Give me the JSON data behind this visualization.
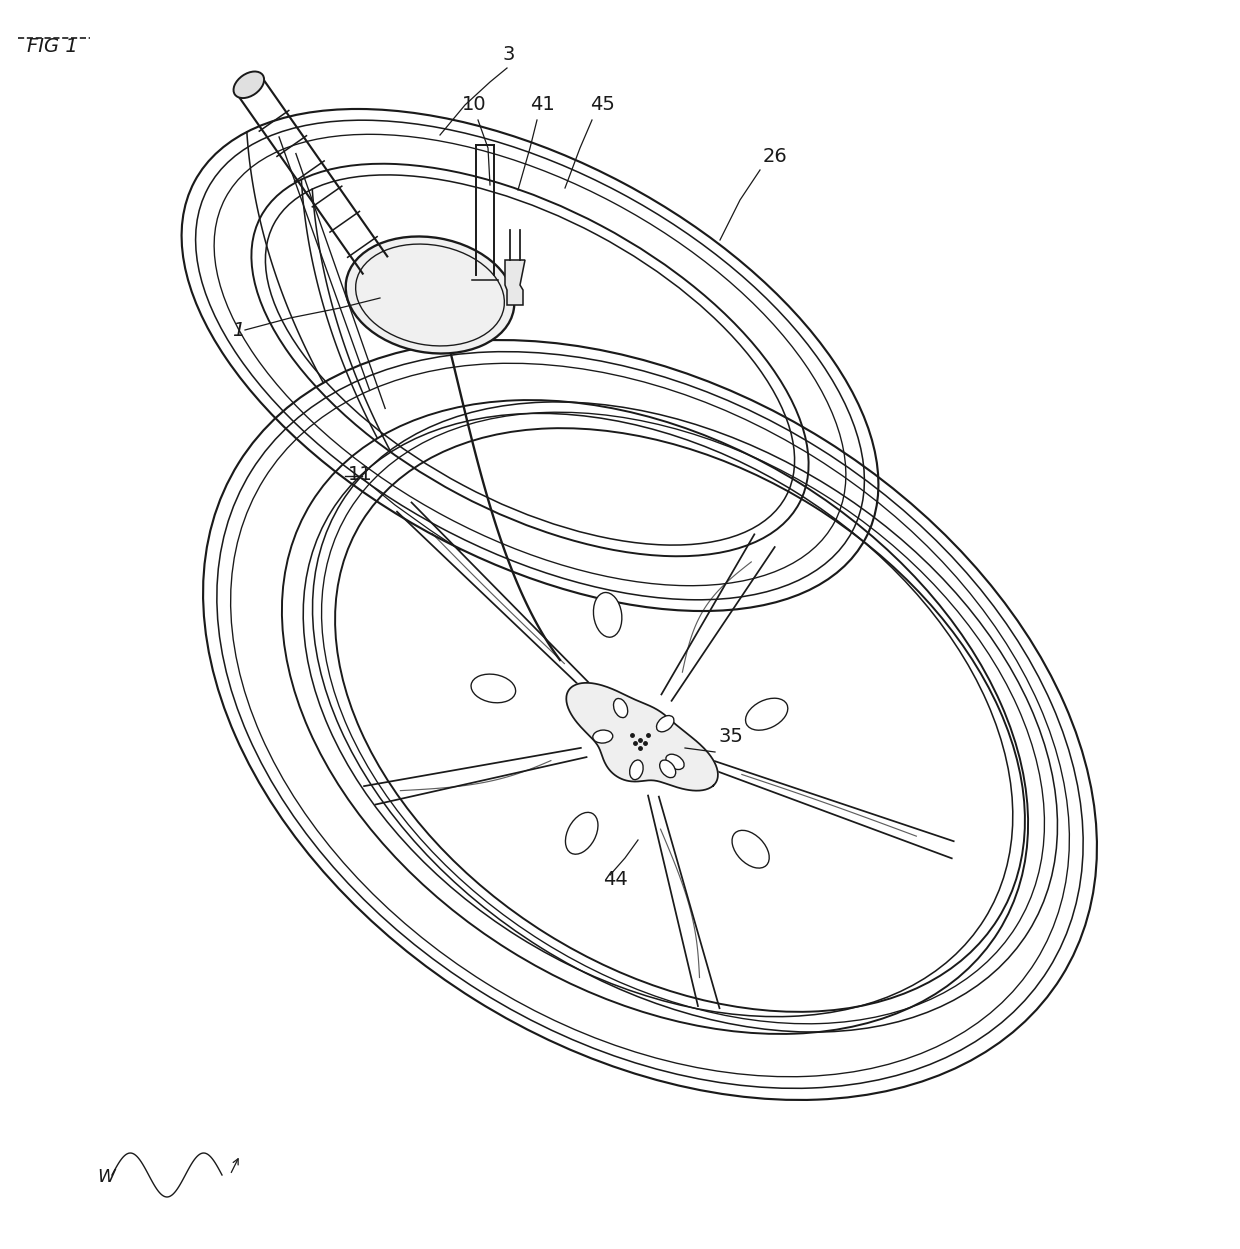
{
  "background_color": "#ffffff",
  "line_color": "#1a1a1a",
  "figsize": [
    12.4,
    12.49
  ],
  "dpi": 100,
  "labels": {
    "fig": "FIG. 1",
    "label_3": "3",
    "label_10": "10",
    "label_41": "41",
    "label_45": "45",
    "label_26": "26",
    "label_11": "11",
    "label_35": "35",
    "label_44": "44",
    "label_1": "1",
    "label_w": "W"
  }
}
